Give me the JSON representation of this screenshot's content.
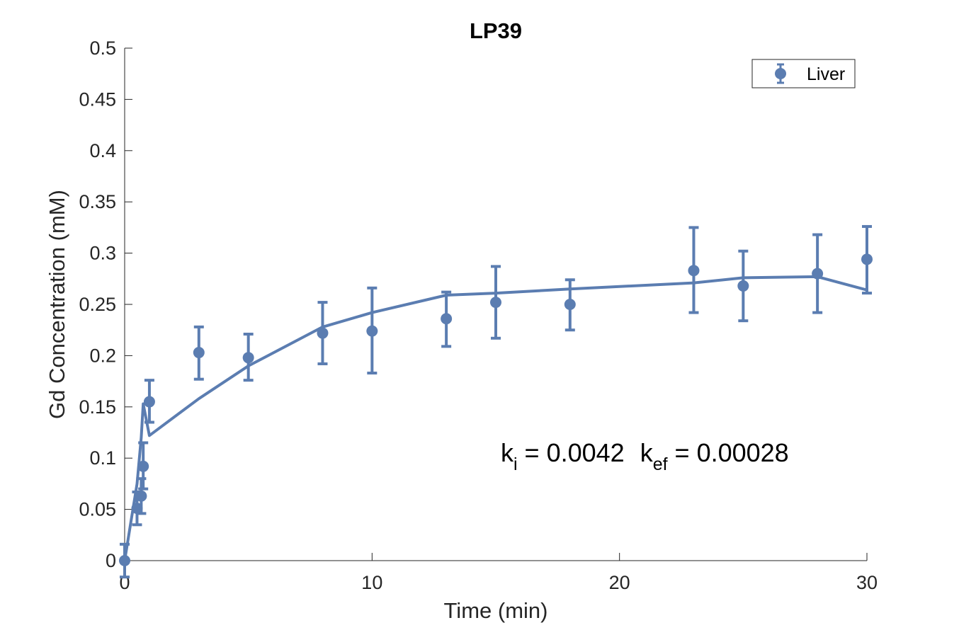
{
  "chart_data": {
    "type": "scatter",
    "title": "LP39",
    "xlabel": "Time (min)",
    "ylabel": "Gd Concentration (mM)",
    "xlim": [
      0,
      30
    ],
    "ylim": [
      0,
      0.5
    ],
    "x_ticks": [
      {
        "value": 0,
        "label": "0"
      },
      {
        "value": 10,
        "label": "10"
      },
      {
        "value": 20,
        "label": "20"
      },
      {
        "value": 30,
        "label": "30"
      }
    ],
    "y_ticks": [
      {
        "value": 0,
        "label": "0"
      },
      {
        "value": 0.05,
        "label": "0.05"
      },
      {
        "value": 0.1,
        "label": "0.1"
      },
      {
        "value": 0.15,
        "label": "0.15"
      },
      {
        "value": 0.2,
        "label": "0.2"
      },
      {
        "value": 0.25,
        "label": "0.25"
      },
      {
        "value": 0.3,
        "label": "0.3"
      },
      {
        "value": 0.35,
        "label": "0.35"
      },
      {
        "value": 0.4,
        "label": "0.4"
      },
      {
        "value": 0.45,
        "label": "0.45"
      },
      {
        "value": 0.5,
        "label": "0.5"
      }
    ],
    "grid": false,
    "legend": {
      "placement": "top-right",
      "entries": [
        "Liver"
      ]
    },
    "color": "#5b7db1",
    "series": [
      {
        "name": "Liver",
        "kind": "errorbar",
        "x": [
          0,
          0.5,
          0.67,
          0.75,
          1,
          3,
          5,
          8,
          10,
          13,
          15,
          18,
          23,
          25,
          28,
          30
        ],
        "y": [
          0,
          0.051,
          0.063,
          0.092,
          0.155,
          0.203,
          0.198,
          0.222,
          0.224,
          0.236,
          0.252,
          0.25,
          0.283,
          0.268,
          0.28,
          0.294
        ],
        "err_low": [
          0.016,
          0.016,
          0.017,
          0.022,
          0.02,
          0.026,
          0.022,
          0.03,
          0.041,
          0.027,
          0.035,
          0.025,
          0.041,
          0.034,
          0.038,
          0.033
        ],
        "err_high": [
          0.016,
          0.016,
          0.017,
          0.023,
          0.021,
          0.025,
          0.023,
          0.03,
          0.042,
          0.026,
          0.035,
          0.024,
          0.042,
          0.034,
          0.038,
          0.032
        ]
      },
      {
        "kind": "fit-line",
        "x": [
          0,
          0.5,
          0.67,
          0.75,
          1,
          3,
          5,
          8,
          10,
          13,
          15,
          18,
          23,
          25,
          28,
          30
        ],
        "y": [
          0,
          0.075,
          0.12,
          0.153,
          0.122,
          0.158,
          0.19,
          0.228,
          0.242,
          0.259,
          0.261,
          0.265,
          0.271,
          0.276,
          0.277,
          0.264
        ]
      }
    ],
    "annotation": {
      "ki_symbol": "k",
      "ki_sub": "i",
      "ki_value": " = 0.0042",
      "kef_symbol": "k",
      "kef_sub": "ef",
      "kef_value": " = 0.00028",
      "position_data": [
        15.2,
        0.1
      ]
    }
  }
}
